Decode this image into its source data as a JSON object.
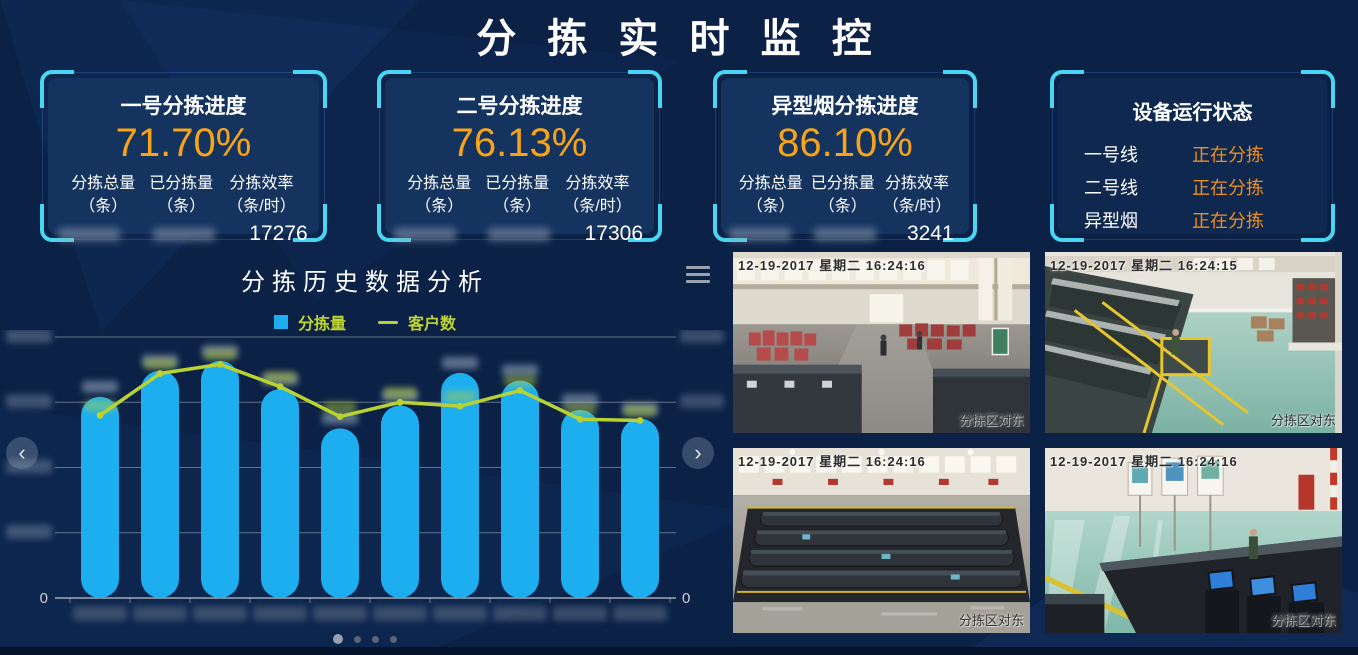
{
  "page": {
    "title": "分 拣 实 时 监 控"
  },
  "cards": [
    {
      "title": "一号分拣进度",
      "percent": "71.70%",
      "columns": [
        {
          "label": "分拣总量",
          "unit": "（条）",
          "value": "",
          "value_redacted": true
        },
        {
          "label": "已分拣量",
          "unit": "（条）",
          "value": "",
          "value_redacted": true
        },
        {
          "label": "分拣效率",
          "unit": "（条/时）",
          "value": "17276"
        }
      ]
    },
    {
      "title": "二号分拣进度",
      "percent": "76.13%",
      "columns": [
        {
          "label": "分拣总量",
          "unit": "（条）",
          "value": "",
          "value_redacted": true
        },
        {
          "label": "已分拣量",
          "unit": "（条）",
          "value": "",
          "value_redacted": true
        },
        {
          "label": "分拣效率",
          "unit": "（条/时）",
          "value": "17306"
        }
      ]
    },
    {
      "title": "异型烟分拣进度",
      "percent": "86.10%",
      "columns": [
        {
          "label": "分拣总量",
          "unit": "（条）",
          "value": "",
          "value_redacted": true
        },
        {
          "label": "已分拣量",
          "unit": "（条）",
          "value": "",
          "value_redacted": true
        },
        {
          "label": "分拣效率",
          "unit": "（条/时）",
          "value": "3241"
        }
      ]
    }
  ],
  "device_status": {
    "title": "设备运行状态",
    "rows": [
      {
        "label": "一号线",
        "status": "正在分拣"
      },
      {
        "label": "二号线",
        "status": "正在分拣"
      },
      {
        "label": "异型烟",
        "status": "正在分拣"
      }
    ]
  },
  "chart": {
    "title": "分拣历史数据分析",
    "legend": [
      {
        "label": "分拣量",
        "type": "bar",
        "color": "#1daef0"
      },
      {
        "label": "客户数",
        "type": "line",
        "color": "#b9d233"
      }
    ]
  },
  "chart_data": {
    "type": "bar",
    "subtype": "bar+line combo, dual y-axis",
    "title": "分拣历史数据分析",
    "categories": [
      "",
      "",
      "",
      "",
      "",
      "",
      "",
      "",
      "",
      ""
    ],
    "categories_redacted": true,
    "series": [
      {
        "name": "分拣量",
        "type": "bar",
        "axis": "left",
        "color": "#1daef0",
        "values": [
          18500,
          20900,
          21800,
          19200,
          15600,
          17700,
          20700,
          20000,
          17300,
          16500
        ],
        "values_estimated_labels_redacted": true
      },
      {
        "name": "客户数",
        "type": "line",
        "axis": "right",
        "color": "#b9d233",
        "values": [
          140,
          172,
          179,
          162,
          139,
          150,
          147,
          159,
          137,
          136
        ],
        "values_estimated_labels_redacted": true
      }
    ],
    "left_axis": {
      "zero_label": "0",
      "top_gridline_value": 24000,
      "tick_labels_redacted": true
    },
    "right_axis": {
      "zero_label": "0",
      "top_gridline_value": 200,
      "tick_labels_redacted": true
    },
    "grid": true,
    "gridline_count": 4,
    "legend_position": "top"
  },
  "carousel": {
    "count": 4,
    "active_index": 0
  },
  "cameras": [
    {
      "timestamp": "12-19-2017 星期二 16:24:16",
      "caption": "分拣区对东"
    },
    {
      "timestamp": "12-19-2017 星期二 16:24:15",
      "caption": "分拣区对东"
    },
    {
      "timestamp": "12-19-2017 星期二 16:24:16",
      "caption": "分拣区对东"
    },
    {
      "timestamp": "12-19-2017 星期二 16:24:16",
      "caption": "分拣区对东"
    }
  ],
  "colors": {
    "background": "#0b2146",
    "card_inner": "#14335f",
    "accent_cyan": "#49d6f2",
    "percent_orange": "#f8a41b",
    "status_orange": "#ef8e1a",
    "bar_blue": "#1daef0",
    "line_green": "#b9d233"
  }
}
